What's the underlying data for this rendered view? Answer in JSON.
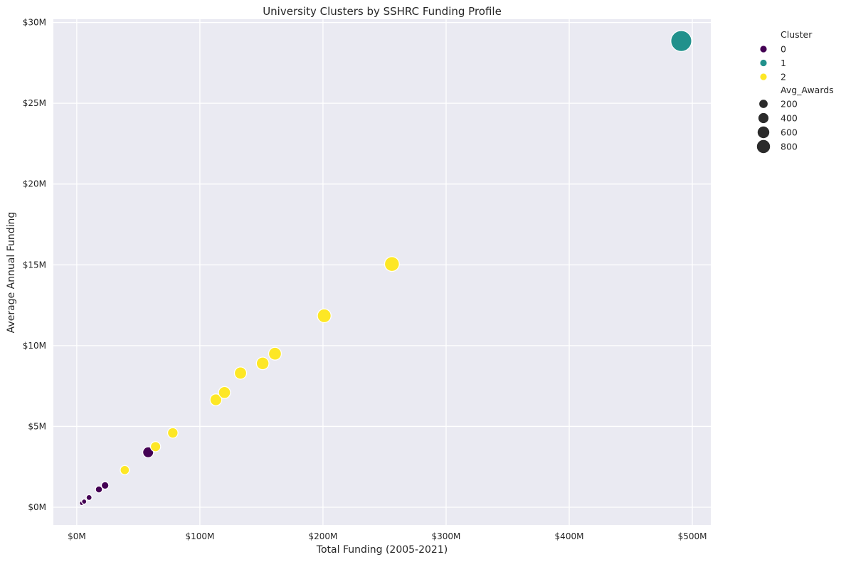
{
  "chart_data": {
    "type": "scatter",
    "title": "University Clusters by SSHRC Funding Profile",
    "xlabel": "Total Funding (2005-2021)",
    "ylabel": "Average Annual Funding",
    "xlim": [
      -19,
      515
    ],
    "ylim": [
      -1.1,
      30.2
    ],
    "x_ticks": [
      0,
      100,
      200,
      300,
      400,
      500
    ],
    "x_tick_labels": [
      "$0M",
      "$100M",
      "$200M",
      "$300M",
      "$400M",
      "$500M"
    ],
    "y_ticks": [
      0,
      5,
      10,
      15,
      20,
      25,
      30
    ],
    "y_tick_labels": [
      "$0M",
      "$5M",
      "$10M",
      "$15M",
      "$20M",
      "$25M",
      "$30M"
    ],
    "grid": true,
    "legend": {
      "placement": "outside-right",
      "hue_title": "Cluster",
      "size_title": "Avg_Awards",
      "hue_entries": [
        {
          "label": "0",
          "color": "#440154"
        },
        {
          "label": "1",
          "color": "#21918c"
        },
        {
          "label": "2",
          "color": "#fde725"
        }
      ],
      "size_entries": [
        {
          "label": "200",
          "value": 200
        },
        {
          "label": "400",
          "value": 400
        },
        {
          "label": "600",
          "value": 600
        },
        {
          "label": "800",
          "value": 800
        }
      ]
    },
    "size_range": [
      40,
      860
    ],
    "series": [
      {
        "name": "0",
        "color": "#440154",
        "points": [
          {
            "x": 4,
            "y": 0.25,
            "awards": 25
          },
          {
            "x": 6,
            "y": 0.35,
            "awards": 35
          },
          {
            "x": 10,
            "y": 0.6,
            "awards": 50
          },
          {
            "x": 18,
            "y": 1.1,
            "awards": 80
          },
          {
            "x": 23,
            "y": 1.35,
            "awards": 95
          },
          {
            "x": 58,
            "y": 3.4,
            "awards": 220
          }
        ]
      },
      {
        "name": "1",
        "color": "#21918c",
        "points": [
          {
            "x": 491,
            "y": 28.85,
            "awards": 860
          }
        ]
      },
      {
        "name": "2",
        "color": "#fde725",
        "points": [
          {
            "x": 39,
            "y": 2.3,
            "awards": 150
          },
          {
            "x": 64,
            "y": 3.75,
            "awards": 190
          },
          {
            "x": 78,
            "y": 4.6,
            "awards": 200
          },
          {
            "x": 113,
            "y": 6.65,
            "awards": 260
          },
          {
            "x": 120,
            "y": 7.1,
            "awards": 270
          },
          {
            "x": 133,
            "y": 8.3,
            "awards": 280
          },
          {
            "x": 151,
            "y": 8.9,
            "awards": 300
          },
          {
            "x": 161,
            "y": 9.5,
            "awards": 310
          },
          {
            "x": 201,
            "y": 11.85,
            "awards": 360
          },
          {
            "x": 256,
            "y": 15.05,
            "awards": 420
          }
        ]
      }
    ]
  }
}
